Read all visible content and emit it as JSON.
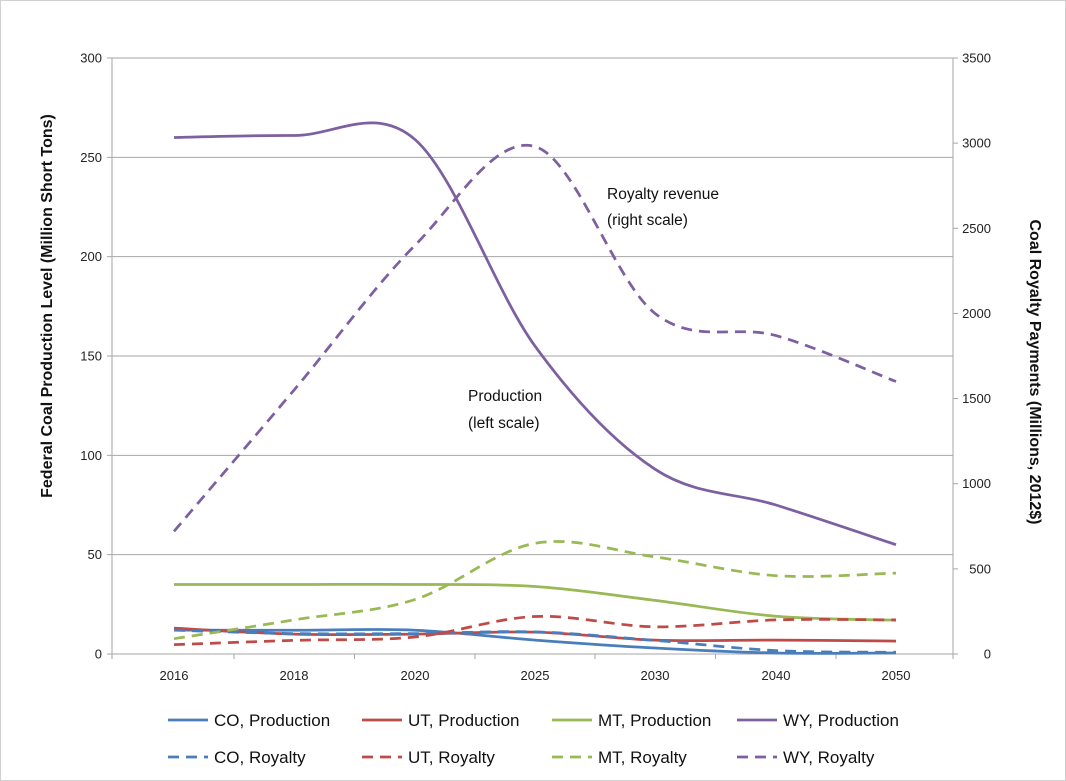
{
  "chart_data": {
    "type": "line",
    "x": [
      "2016",
      "2018",
      "2020",
      "2025",
      "2030",
      "2040",
      "2050"
    ],
    "y_left": {
      "label": "Federal Coal Production Level (Million Short Tons)",
      "ticks": [
        "0",
        "50",
        "100",
        "150",
        "200",
        "250",
        "300"
      ],
      "ylim": [
        0,
        300
      ]
    },
    "y_right": {
      "label": "Coal Royalty Payments (Millions, 2012$)",
      "ticks": [
        "0",
        "500",
        "1000",
        "1500",
        "2000",
        "2500",
        "3000",
        "3500"
      ],
      "ylim": [
        0,
        3500
      ]
    },
    "grid": "horizontal",
    "legend_position": "bottom",
    "annotations": [
      {
        "id": "royalty",
        "lines": [
          "Royalty revenue",
          "(right scale)"
        ]
      },
      {
        "id": "production",
        "lines": [
          "Production",
          "(left scale)"
        ]
      }
    ],
    "series": [
      {
        "name": "CO, Production",
        "axis": "left",
        "style": "solid",
        "color": "#4a7ebb",
        "values": [
          12,
          12,
          12,
          7,
          3,
          0.5,
          0.5
        ]
      },
      {
        "name": "UT, Production",
        "axis": "left",
        "style": "solid",
        "color": "#be4b48",
        "values": [
          13,
          10,
          10,
          11,
          7,
          7,
          6.5
        ]
      },
      {
        "name": "MT, Production",
        "axis": "left",
        "style": "solid",
        "color": "#98b954",
        "values": [
          35,
          35,
          35,
          34,
          27,
          19,
          17
        ]
      },
      {
        "name": "WY, Production",
        "axis": "left",
        "style": "solid",
        "color": "#7d60a0",
        "values": [
          260,
          261,
          259,
          155,
          93,
          75,
          55
        ]
      },
      {
        "name": "CO, Royalty",
        "axis": "right",
        "style": "dashed",
        "color": "#4a7ebb",
        "values": [
          140,
          120,
          120,
          130,
          80,
          20,
          10
        ]
      },
      {
        "name": "UT, Royalty",
        "axis": "right",
        "style": "dashed",
        "color": "#be4b48",
        "values": [
          55,
          80,
          100,
          220,
          160,
          200,
          200
        ]
      },
      {
        "name": "MT, Royalty",
        "axis": "right",
        "style": "dashed",
        "color": "#98b954",
        "values": [
          90,
          200,
          320,
          650,
          570,
          460,
          475
        ]
      },
      {
        "name": "WY, Royalty",
        "axis": "right",
        "style": "dashed",
        "color": "#7d60a0",
        "values": [
          720,
          1550,
          2400,
          2980,
          2000,
          1870,
          1600
        ]
      }
    ]
  }
}
